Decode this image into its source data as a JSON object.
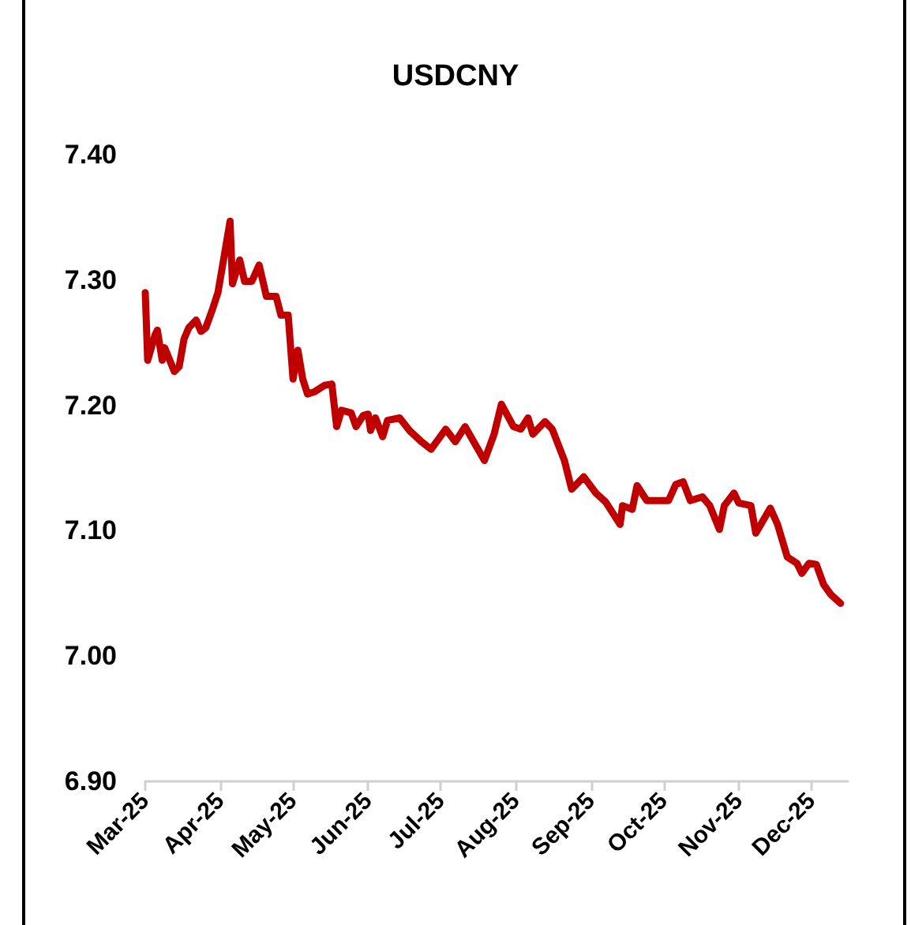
{
  "chart_data": {
    "type": "line",
    "title": "USDCNY",
    "x": [
      "2025-03-01",
      "2025-03-02",
      "2025-03-05",
      "2025-03-06",
      "2025-03-08",
      "2025-03-09",
      "2025-03-13",
      "2025-03-15",
      "2025-03-17",
      "2025-03-19",
      "2025-03-22",
      "2025-03-24",
      "2025-03-26",
      "2025-03-29",
      "2025-03-31",
      "2025-04-03",
      "2025-04-05",
      "2025-04-06",
      "2025-04-09",
      "2025-04-11",
      "2025-04-14",
      "2025-04-17",
      "2025-04-20",
      "2025-04-24",
      "2025-04-26",
      "2025-04-29",
      "2025-05-01",
      "2025-05-03",
      "2025-05-05",
      "2025-05-07",
      "2025-05-10",
      "2025-05-14",
      "2025-05-17",
      "2025-05-19",
      "2025-05-21",
      "2025-05-25",
      "2025-05-27",
      "2025-05-30",
      "2025-06-01",
      "2025-06-02",
      "2025-06-04",
      "2025-06-07",
      "2025-06-09",
      "2025-06-14",
      "2025-06-18",
      "2025-06-23",
      "2025-06-27",
      "2025-07-03",
      "2025-07-07",
      "2025-07-11",
      "2025-07-19",
      "2025-07-23",
      "2025-07-26",
      "2025-07-31",
      "2025-08-03",
      "2025-08-06",
      "2025-08-08",
      "2025-08-13",
      "2025-08-16",
      "2025-08-21",
      "2025-08-24",
      "2025-08-29",
      "2025-09-03",
      "2025-09-07",
      "2025-09-13",
      "2025-09-14",
      "2025-09-18",
      "2025-09-20",
      "2025-09-24",
      "2025-10-03",
      "2025-10-06",
      "2025-10-09",
      "2025-10-12",
      "2025-10-17",
      "2025-10-20",
      "2025-10-24",
      "2025-10-26",
      "2025-10-30",
      "2025-11-01",
      "2025-11-06",
      "2025-11-08",
      "2025-11-14",
      "2025-11-17",
      "2025-11-21",
      "2025-11-25",
      "2025-11-27",
      "2025-11-30",
      "2025-12-03",
      "2025-12-06",
      "2025-12-09",
      "2025-12-13"
    ],
    "series": [
      {
        "color": "#c00000",
        "values": [
          7.29,
          7.236,
          7.256,
          7.26,
          7.236,
          7.246,
          7.227,
          7.231,
          7.253,
          7.262,
          7.268,
          7.259,
          7.262,
          7.278,
          7.29,
          7.324,
          7.347,
          7.297,
          7.316,
          7.299,
          7.299,
          7.312,
          7.287,
          7.287,
          7.272,
          7.272,
          7.221,
          7.244,
          7.221,
          7.209,
          7.211,
          7.216,
          7.217,
          7.183,
          7.196,
          7.194,
          7.183,
          7.192,
          7.193,
          7.18,
          7.19,
          7.175,
          7.188,
          7.19,
          7.18,
          7.171,
          7.165,
          7.181,
          7.171,
          7.183,
          7.156,
          7.177,
          7.201,
          7.183,
          7.181,
          7.19,
          7.177,
          7.187,
          7.181,
          7.156,
          7.133,
          7.143,
          7.13,
          7.123,
          7.105,
          7.12,
          7.117,
          7.136,
          7.124,
          7.124,
          7.137,
          7.139,
          7.124,
          7.127,
          7.12,
          7.101,
          7.12,
          7.13,
          7.122,
          7.12,
          7.098,
          7.118,
          7.105,
          7.079,
          7.074,
          7.066,
          7.074,
          7.073,
          7.057,
          7.049,
          7.042
        ]
      }
    ],
    "xlim": [
      "2025-03-01",
      "2025-12-16"
    ],
    "xticks": [
      {
        "value": "2025-03-01",
        "label": "Mar-25"
      },
      {
        "value": "2025-04-01",
        "label": "Apr-25"
      },
      {
        "value": "2025-05-01",
        "label": "May-25"
      },
      {
        "value": "2025-06-01",
        "label": "Jun-25"
      },
      {
        "value": "2025-07-01",
        "label": "Jul-25"
      },
      {
        "value": "2025-08-01",
        "label": "Aug-25"
      },
      {
        "value": "2025-09-01",
        "label": "Sep-25"
      },
      {
        "value": "2025-10-01",
        "label": "Oct-25"
      },
      {
        "value": "2025-11-01",
        "label": "Nov-25"
      },
      {
        "value": "2025-12-01",
        "label": "Dec-25"
      }
    ],
    "ylim": [
      6.9,
      7.4
    ],
    "yticks": [
      {
        "value": 6.9,
        "label": "6.90"
      },
      {
        "value": 7.0,
        "label": "7.00"
      },
      {
        "value": 7.1,
        "label": "7.10"
      },
      {
        "value": 7.2,
        "label": "7.20"
      },
      {
        "value": 7.3,
        "label": "7.30"
      },
      {
        "value": 7.4,
        "label": "7.40"
      }
    ],
    "grid": false,
    "marker": "none",
    "line_style": "solid"
  }
}
